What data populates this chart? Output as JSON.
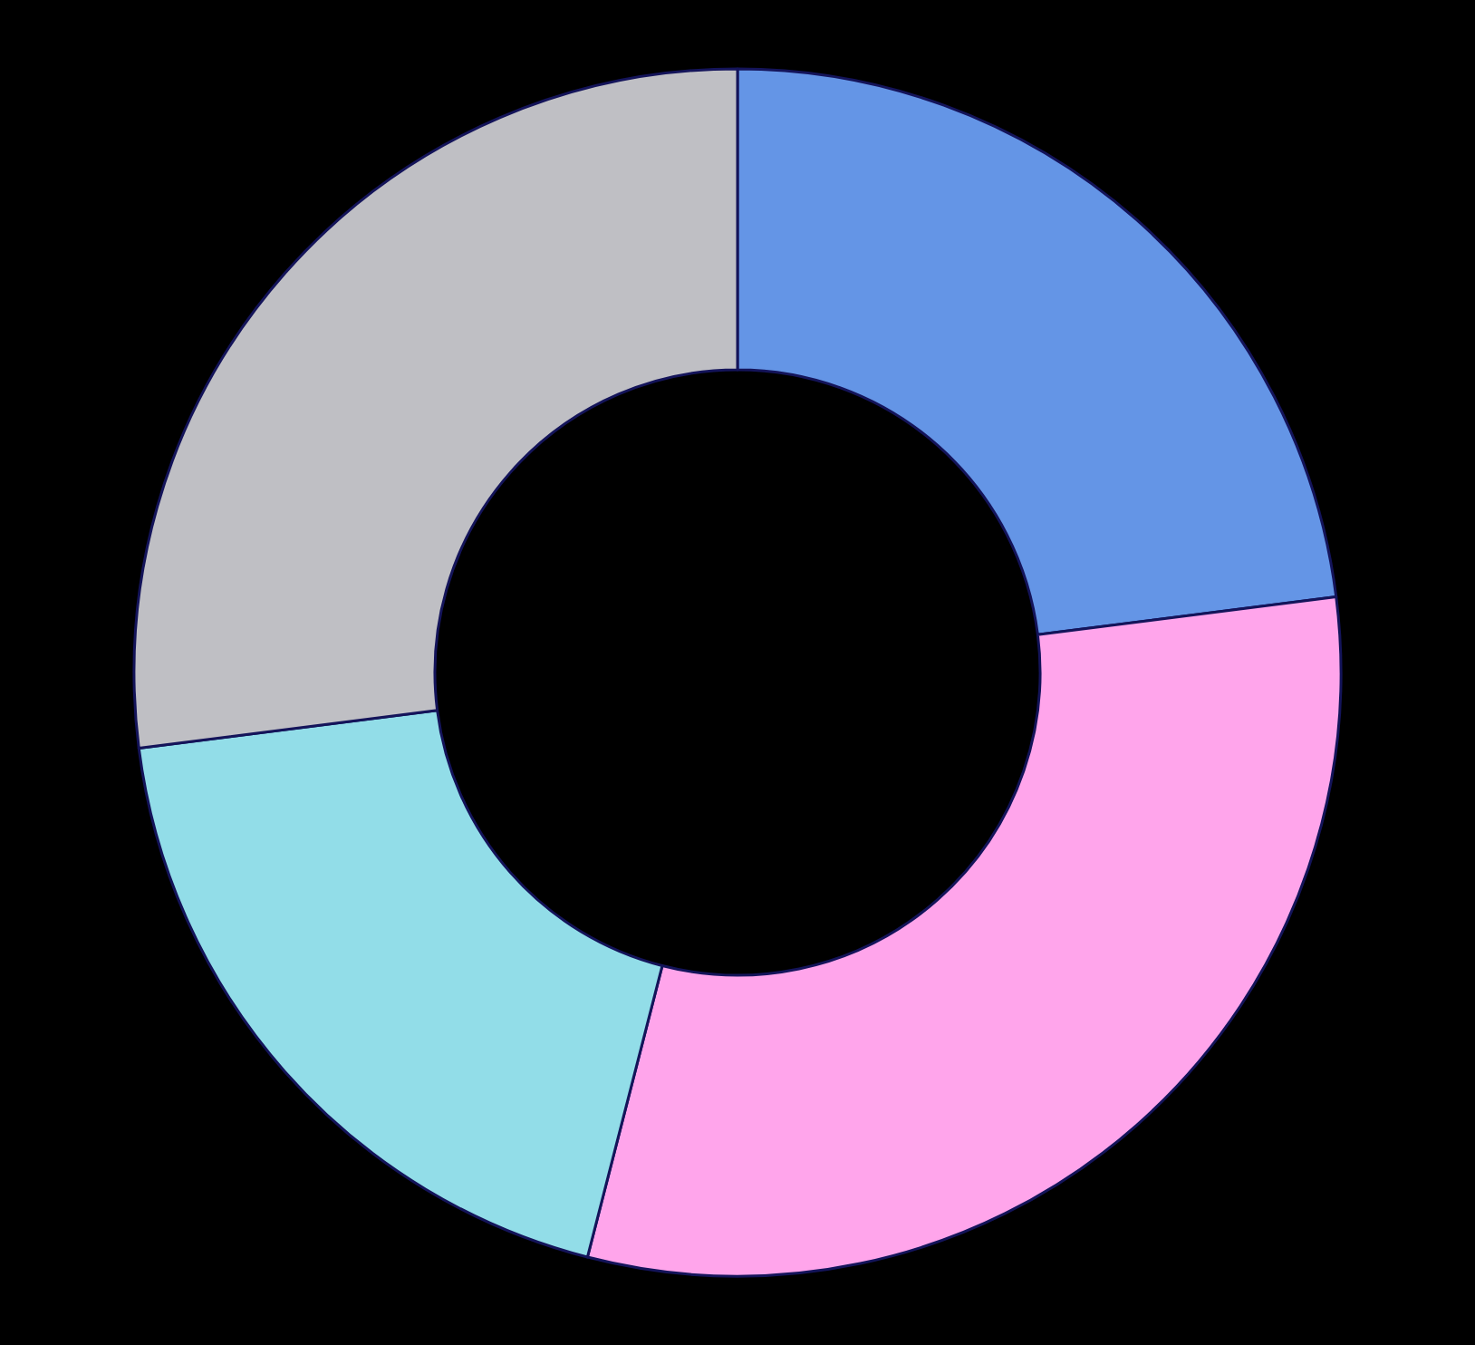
{
  "chart_data": {
    "type": "donut",
    "categories": [
      null,
      null,
      null,
      null
    ],
    "values": [
      23,
      31,
      19,
      27
    ],
    "colors": [
      "#6495e6",
      "#ffa5eb",
      "#92dde8",
      "#bfbfc4"
    ]
  }
}
